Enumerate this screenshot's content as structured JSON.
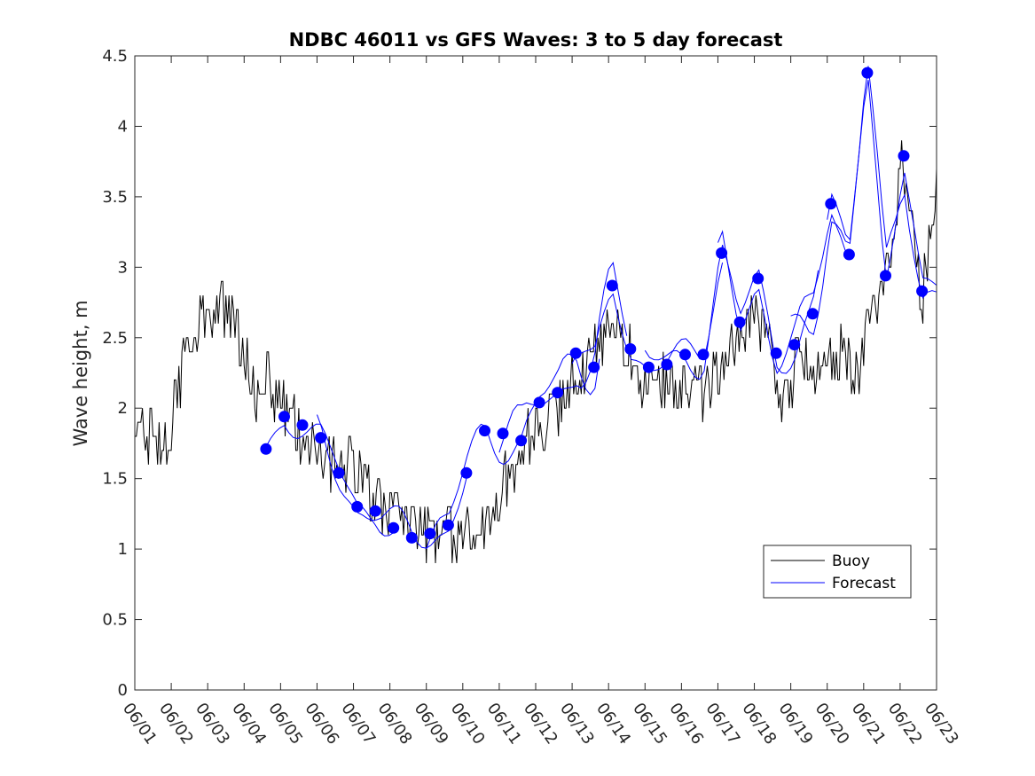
{
  "chart_data": {
    "type": "line",
    "title": "NDBC 46011 vs GFS Waves: 3 to 5 day forecast",
    "xlabel": "",
    "ylabel": "Wave height, m",
    "xlim": [
      0,
      22
    ],
    "ylim": [
      0,
      4.5
    ],
    "xticks": [
      "06/01",
      "06/02",
      "06/03",
      "06/04",
      "06/05",
      "06/06",
      "06/07",
      "06/08",
      "06/09",
      "06/10",
      "06/11",
      "06/12",
      "06/13",
      "06/14",
      "06/15",
      "06/16",
      "06/17",
      "06/18",
      "06/19",
      "06/20",
      "06/21",
      "06/22",
      "06/23"
    ],
    "yticks": [
      "0",
      "0.5",
      "1",
      "1.5",
      "2",
      "2.5",
      "3",
      "3.5",
      "4",
      "4.5"
    ],
    "legend": {
      "placement": "bottom-right",
      "entries": [
        "Buoy",
        "Forecast"
      ]
    },
    "colors": {
      "buoy": "#000000",
      "forecast": "#0000ff"
    },
    "buoy_anchors": {
      "day": [
        0,
        0.5,
        0.8,
        1.0,
        1.2,
        1.5,
        2.0,
        2.3,
        2.6,
        3.0,
        3.3,
        3.6,
        4.0,
        4.3,
        4.6,
        5.0,
        5.4,
        5.8,
        6.2,
        6.6,
        7.0,
        7.4,
        7.8,
        8.2,
        8.6,
        9.0,
        9.4,
        9.8,
        10.2,
        10.6,
        11.0,
        11.4,
        11.8,
        12.2,
        12.6,
        13.0,
        13.4,
        13.8,
        14.2,
        14.6,
        15.0,
        15.4,
        15.8,
        16.2,
        16.6,
        17.0,
        17.3,
        17.6,
        17.9,
        18.2,
        18.6,
        19.0,
        19.4,
        19.8,
        20.2,
        20.5,
        20.8,
        21.0,
        21.3,
        21.6,
        22.0
      ],
      "height": [
        1.8,
        1.8,
        1.7,
        1.85,
        2.2,
        2.5,
        2.6,
        2.75,
        2.6,
        2.4,
        2.1,
        2.2,
        2.0,
        1.95,
        1.7,
        1.75,
        1.6,
        1.6,
        1.55,
        1.3,
        1.35,
        1.25,
        1.15,
        1.1,
        1.1,
        1.05,
        1.1,
        1.2,
        1.5,
        1.75,
        1.8,
        1.9,
        2.1,
        2.3,
        2.4,
        2.55,
        2.45,
        2.3,
        2.1,
        2.2,
        2.2,
        2.1,
        2.2,
        2.35,
        2.5,
        2.65,
        2.6,
        2.2,
        2.05,
        2.45,
        2.3,
        2.35,
        2.4,
        2.2,
        2.7,
        2.8,
        3.2,
        3.75,
        3.3,
        2.7,
        3.65
      ]
    },
    "forecast_markers": {
      "day": [
        3.6,
        4.1,
        4.6,
        5.1,
        5.6,
        6.1,
        6.6,
        7.1,
        7.6,
        8.1,
        8.6,
        9.1,
        9.6,
        10.1,
        10.6,
        11.1,
        11.6,
        12.1,
        12.6,
        13.1,
        13.6,
        14.1,
        14.6,
        15.1,
        15.6,
        16.1,
        16.6,
        17.1,
        17.6,
        18.1,
        18.6,
        19.1,
        19.6,
        20.1,
        20.6,
        21.1,
        21.6
      ],
      "height": [
        1.71,
        1.94,
        1.88,
        1.79,
        1.54,
        1.3,
        1.27,
        1.15,
        1.08,
        1.11,
        1.17,
        1.54,
        1.84,
        1.82,
        1.77,
        2.04,
        2.11,
        2.39,
        2.29,
        2.87,
        2.42,
        2.29,
        2.31,
        2.38,
        2.38,
        3.1,
        2.61,
        2.92,
        2.39,
        2.45,
        2.67,
        3.45,
        3.09,
        4.38,
        2.94,
        3.79,
        2.83
      ]
    }
  }
}
